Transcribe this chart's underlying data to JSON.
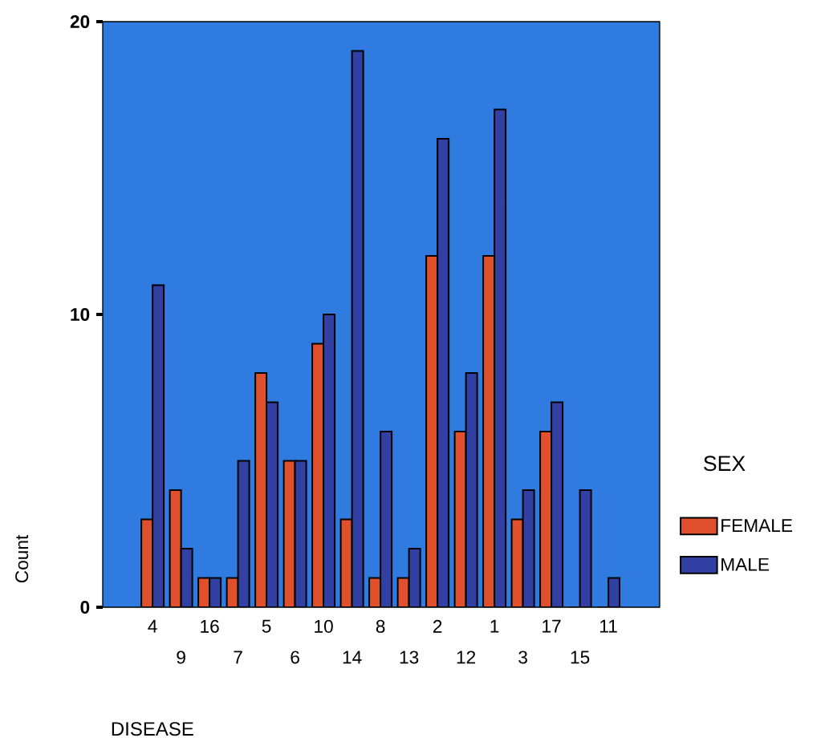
{
  "chart_data": {
    "type": "bar",
    "xlabel": "DISEASE",
    "ylabel": "Count",
    "legend_title": "SEX",
    "categories": [
      "4",
      "9",
      "16",
      "7",
      "5",
      "6",
      "10",
      "14",
      "8",
      "13",
      "2",
      "12",
      "1",
      "3",
      "17",
      "15",
      "11"
    ],
    "series": [
      {
        "name": "FEMALE",
        "color": "#e0502c",
        "values": [
          3,
          4,
          1,
          1,
          8,
          5,
          9,
          3,
          1,
          1,
          12,
          6,
          12,
          3,
          6,
          0,
          0
        ]
      },
      {
        "name": "MALE",
        "color": "#3240a4",
        "values": [
          11,
          2,
          1,
          5,
          7,
          5,
          10,
          19,
          6,
          2,
          16,
          8,
          17,
          4,
          7,
          4,
          1
        ]
      }
    ],
    "ylim": [
      0,
      20
    ],
    "yticks": [
      0,
      10,
      20
    ],
    "grid": false,
    "legend": "right"
  }
}
